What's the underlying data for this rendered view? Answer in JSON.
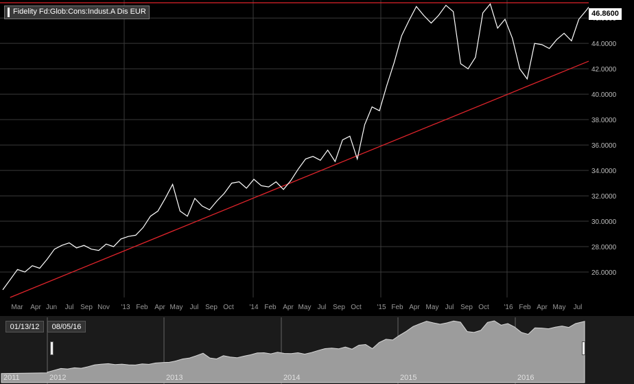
{
  "legend": {
    "series_name": "Fidelity Fd:Glob:Cons:Indust.A Dis EUR"
  },
  "last_price": {
    "value": "46.8600"
  },
  "navigator": {
    "range_start": "01/13/12",
    "range_end": "08/05/16",
    "years": [
      "2011",
      "2012",
      "2013",
      "2014",
      "2015",
      "2016"
    ]
  },
  "colors": {
    "price_line": "#ffffff",
    "trend_line": "#e0242b",
    "resistance_line": "#e0242b",
    "background": "#000000",
    "grid": "#3a3a3a"
  },
  "chart_data": {
    "type": "line",
    "title": "",
    "xlabel": "",
    "ylabel": "",
    "ylim": [
      24.0,
      47.2
    ],
    "x_range": [
      "2012-01-13",
      "2016-08-05"
    ],
    "x_tick_labels": [
      "Mar",
      "Apr",
      "Jun",
      "Jul",
      "Sep",
      "Nov",
      "'13",
      "Feb",
      "Apr",
      "May",
      "Jul",
      "Sep",
      "Oct",
      "'14",
      "Feb",
      "Apr",
      "May",
      "Jul",
      "Sep",
      "Oct",
      "'15",
      "Feb",
      "Apr",
      "May",
      "Jul",
      "Sep",
      "Oct",
      "'16",
      "Feb",
      "Apr",
      "May",
      "Jul"
    ],
    "y_tick_labels": [
      "26.0000",
      "28.0000",
      "30.0000",
      "32.0000",
      "34.0000",
      "36.0000",
      "38.0000",
      "40.0000",
      "42.0000",
      "44.0000",
      "46.0000"
    ],
    "grid": true,
    "series": [
      {
        "name": "Fidelity Fd:Glob:Cons:Indust.A Dis EUR",
        "x": [
          "2012-01-13",
          "2012-02-03",
          "2012-02-24",
          "2012-03-16",
          "2012-04-06",
          "2012-04-27",
          "2012-05-18",
          "2012-06-08",
          "2012-06-29",
          "2012-07-20",
          "2012-08-10",
          "2012-08-31",
          "2012-09-21",
          "2012-10-12",
          "2012-11-02",
          "2012-11-23",
          "2012-12-14",
          "2013-01-04",
          "2013-01-25",
          "2013-02-15",
          "2013-03-08",
          "2013-03-29",
          "2013-04-19",
          "2013-05-10",
          "2013-05-31",
          "2013-06-21",
          "2013-07-12",
          "2013-08-02",
          "2013-08-23",
          "2013-09-13",
          "2013-10-04",
          "2013-10-25",
          "2013-11-15",
          "2013-12-06",
          "2013-12-27",
          "2014-01-17",
          "2014-02-07",
          "2014-02-28",
          "2014-03-21",
          "2014-04-11",
          "2014-05-02",
          "2014-05-23",
          "2014-06-13",
          "2014-07-04",
          "2014-07-25",
          "2014-08-15",
          "2014-09-05",
          "2014-09-26",
          "2014-10-17",
          "2014-11-07",
          "2014-11-28",
          "2014-12-19",
          "2015-01-09",
          "2015-01-30",
          "2015-02-20",
          "2015-03-13",
          "2015-04-03",
          "2015-04-24",
          "2015-05-15",
          "2015-06-05",
          "2015-06-26",
          "2015-07-17",
          "2015-08-07",
          "2015-08-28",
          "2015-09-18",
          "2015-10-09",
          "2015-10-30",
          "2015-11-20",
          "2015-12-11",
          "2016-01-01",
          "2016-01-22",
          "2016-02-12",
          "2016-03-04",
          "2016-03-25",
          "2016-04-15",
          "2016-05-06",
          "2016-05-27",
          "2016-06-17",
          "2016-07-08",
          "2016-07-29",
          "2016-08-05"
        ],
        "values": [
          24.6,
          25.4,
          26.2,
          26.0,
          26.5,
          26.3,
          27.0,
          27.8,
          28.1,
          28.3,
          27.9,
          28.1,
          27.8,
          27.7,
          28.2,
          28.0,
          28.6,
          28.8,
          28.9,
          29.5,
          30.4,
          30.8,
          31.8,
          32.9,
          30.8,
          30.4,
          31.8,
          31.2,
          30.9,
          31.6,
          32.2,
          33.0,
          33.1,
          32.6,
          33.3,
          32.8,
          32.7,
          33.1,
          32.5,
          33.2,
          34.1,
          34.9,
          35.1,
          34.8,
          35.6,
          34.7,
          36.4,
          36.7,
          34.9,
          37.6,
          39.0,
          38.7,
          40.7,
          42.5,
          44.6,
          45.8,
          46.9,
          46.2,
          45.6,
          46.2,
          47.0,
          46.5,
          42.4,
          42.0,
          42.9,
          46.4,
          47.1,
          45.2,
          45.9,
          44.4,
          42.0,
          41.2,
          44.0,
          43.9,
          43.6,
          44.3,
          44.8,
          44.2,
          45.9,
          46.6,
          46.86
        ]
      }
    ],
    "trendline": {
      "x": [
        "2012-02-03",
        "2016-08-05"
      ],
      "y": [
        24.0,
        42.6
      ]
    },
    "resistance": {
      "y": 47.2
    }
  }
}
